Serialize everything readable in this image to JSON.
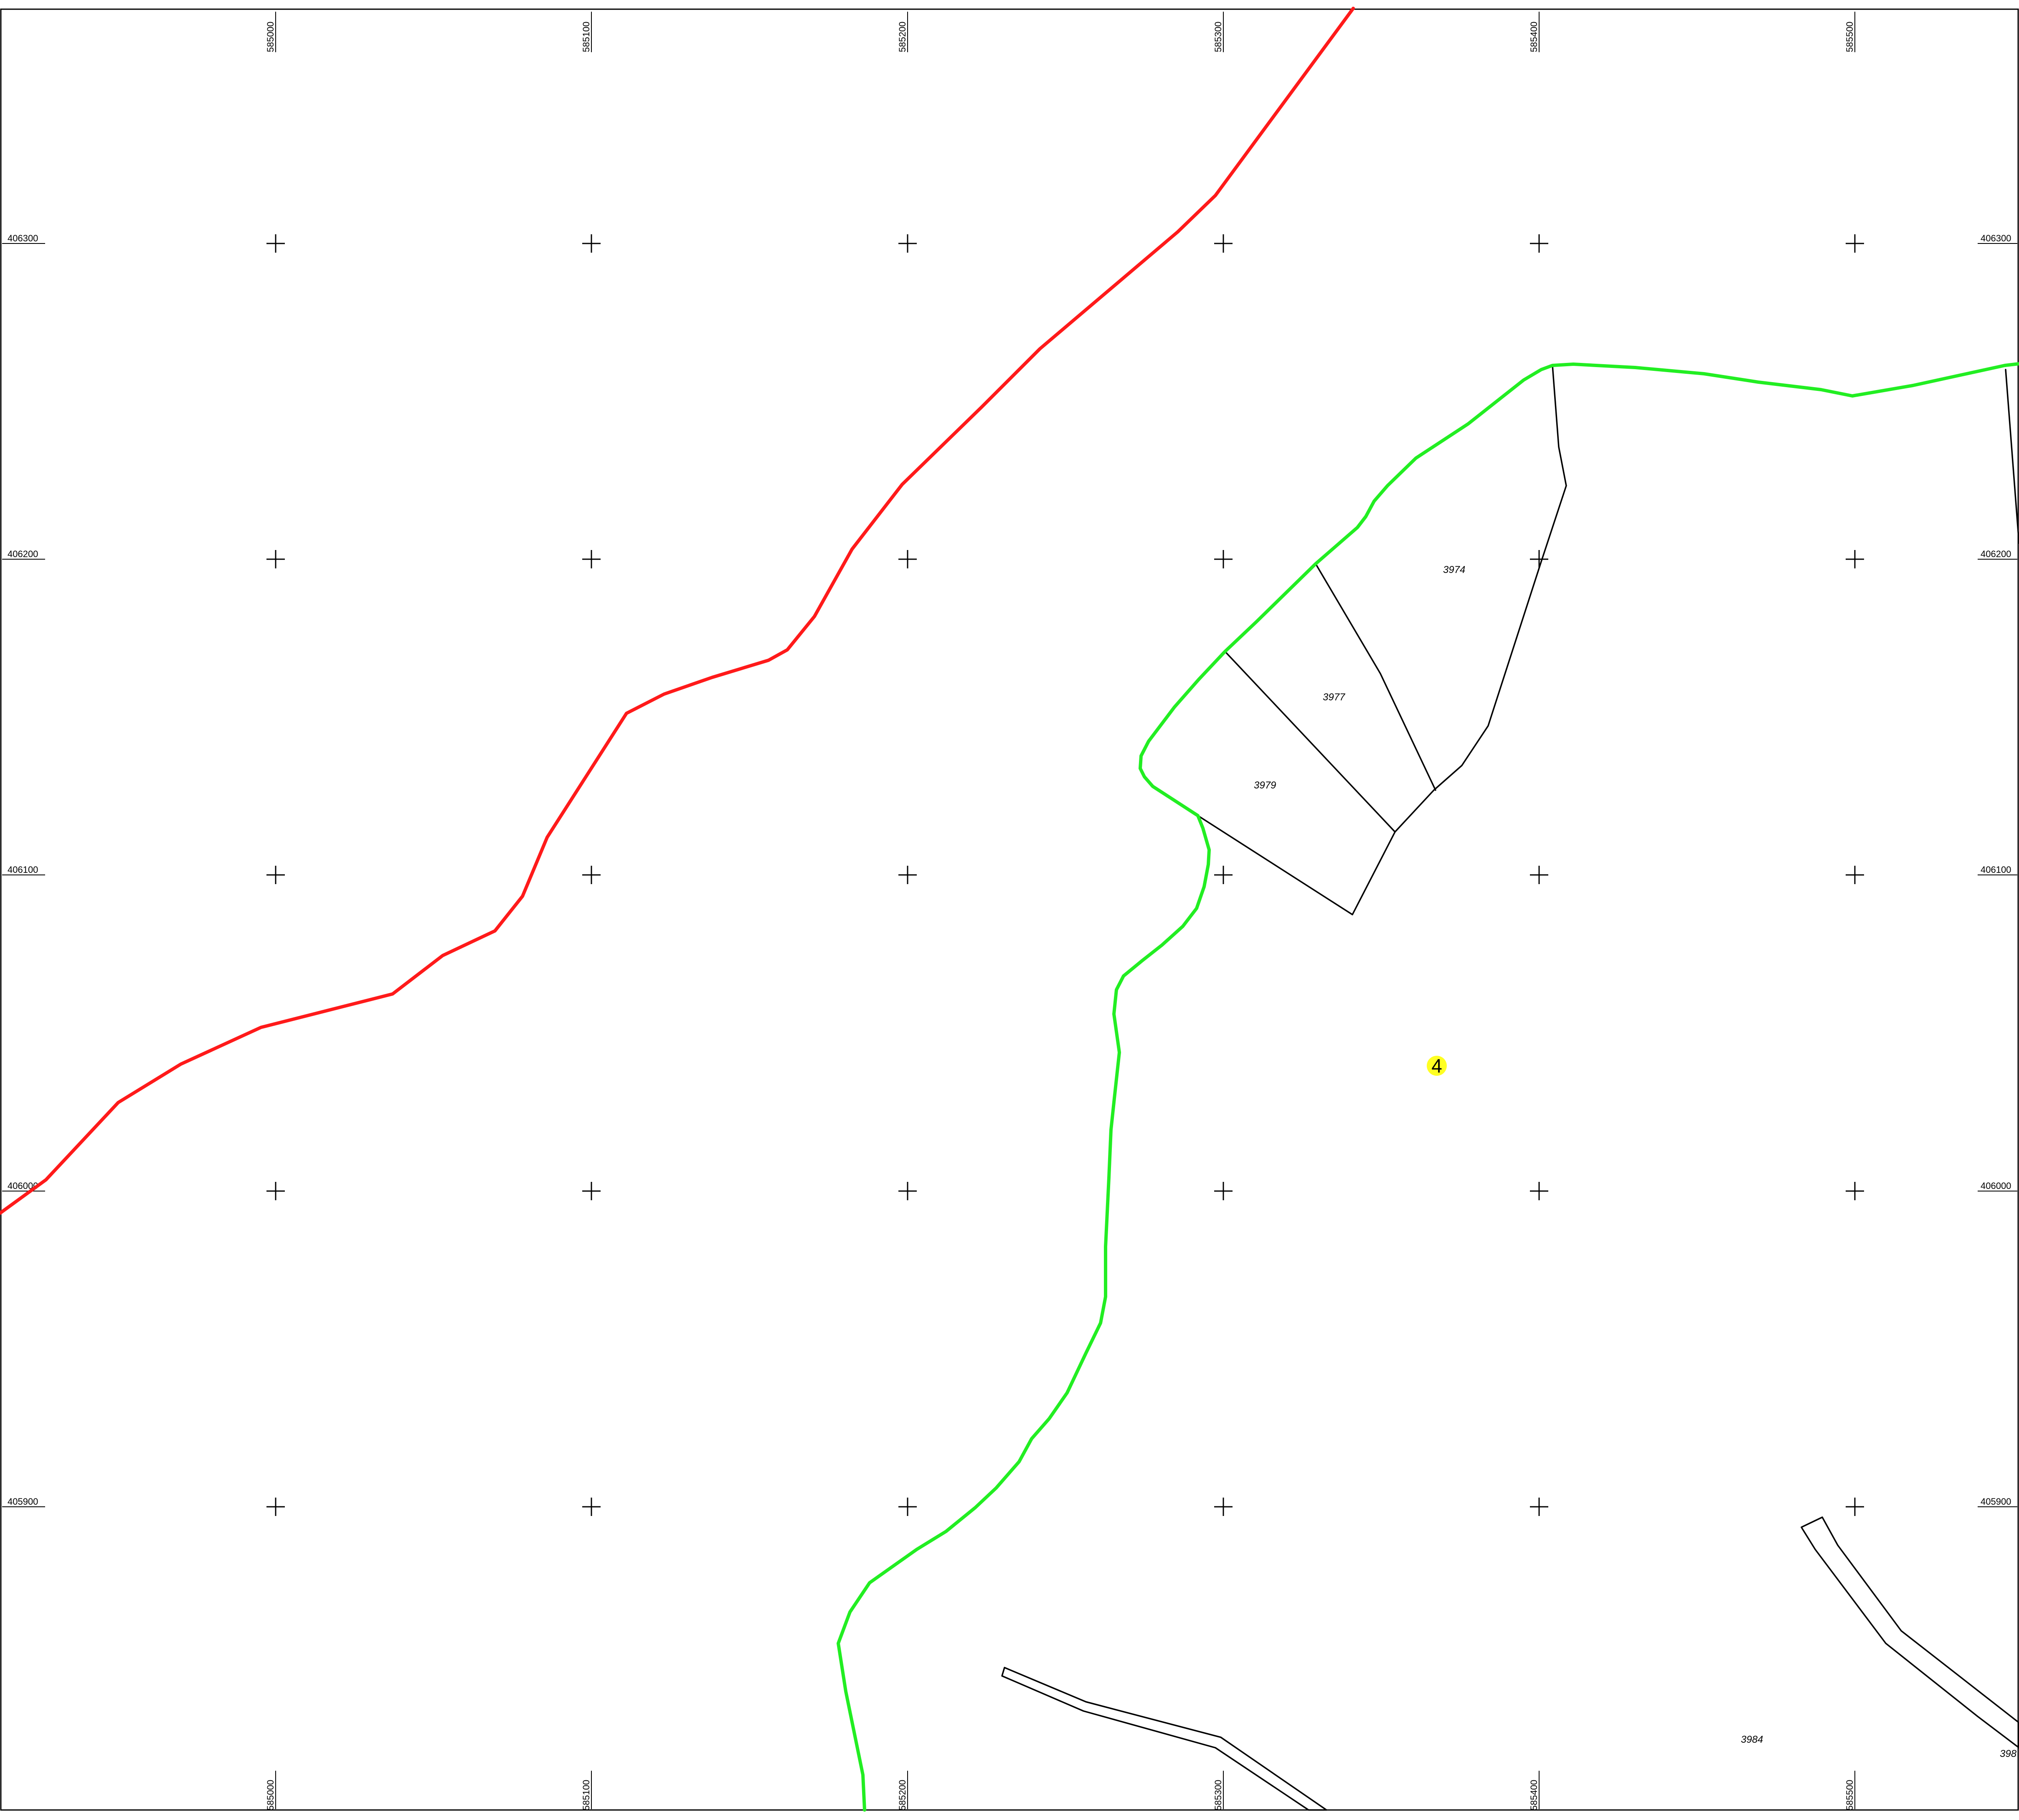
{
  "map": {
    "easting_labels": [
      "585000",
      "585100",
      "585200",
      "585300",
      "585400",
      "585500"
    ],
    "northing_labels": [
      "406300",
      "406200",
      "406100",
      "406000",
      "405900"
    ],
    "parcels": [
      {
        "id": "3974",
        "label": "3974"
      },
      {
        "id": "3977",
        "label": "3977"
      },
      {
        "id": "3979",
        "label": "3979"
      },
      {
        "id": "3984",
        "label": "3984"
      },
      {
        "id": "398",
        "label": "398"
      }
    ],
    "marker": {
      "label": "4",
      "color": "#ffff22"
    },
    "colors": {
      "road": "#ff1a1a",
      "stream": "#22ee22",
      "parcel_boundary": "#000000",
      "grid": "#000000"
    }
  }
}
